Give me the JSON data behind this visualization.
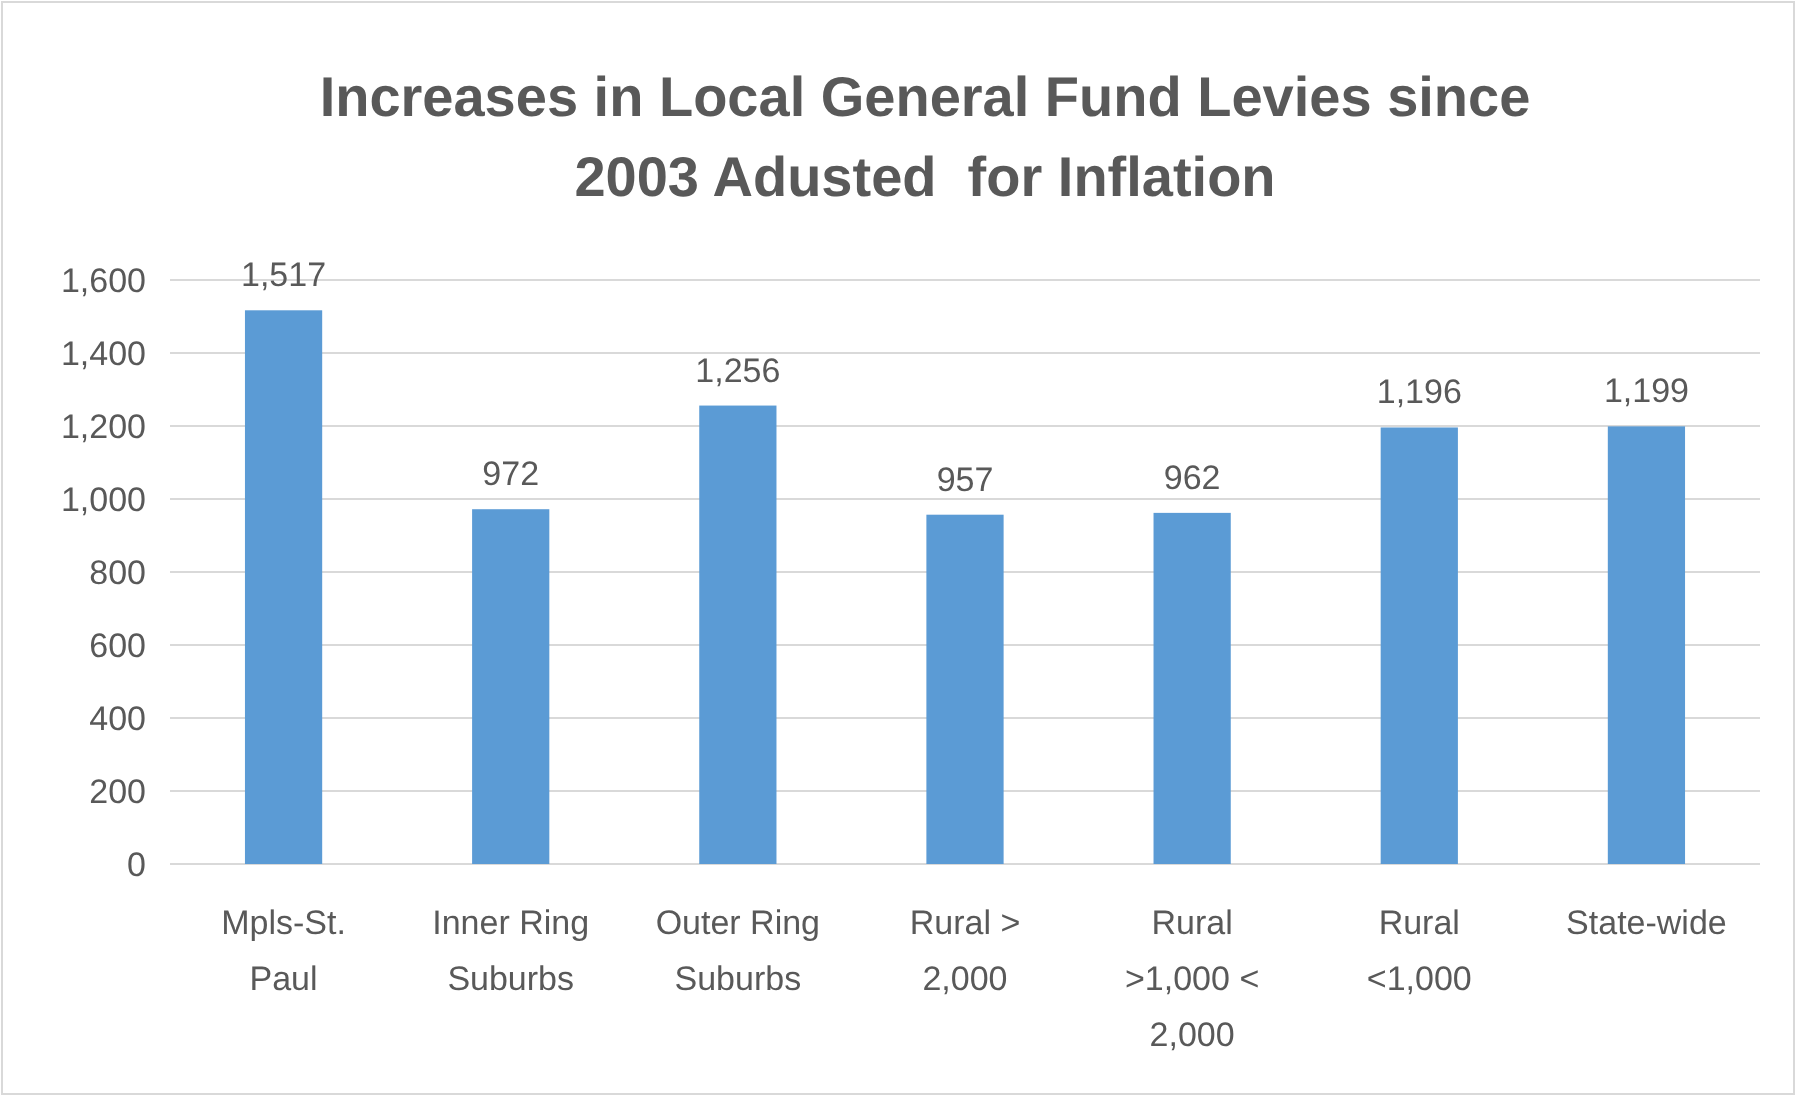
{
  "chart_data": {
    "type": "bar",
    "title": "Increases in Local General Fund Levies since 2003 Adusted  for Inflation",
    "categories": [
      "Mpls-St. Paul",
      "Inner Ring Suburbs",
      "Outer Ring Suburbs",
      "Rural > 2,000",
      "Rural >1,000 < 2,000",
      "Rural <1,000",
      "State-wide"
    ],
    "values": [
      1517,
      972,
      1256,
      957,
      962,
      1196,
      1199
    ],
    "color": "#5b9bd5",
    "ylim": [
      0,
      1600
    ],
    "yticks": [
      {
        "value": 0,
        "label": "0"
      },
      {
        "value": 200,
        "label": "200"
      },
      {
        "value": 400,
        "label": "400"
      },
      {
        "value": 600,
        "label": "600"
      },
      {
        "value": 800,
        "label": "800"
      },
      {
        "value": 1000,
        "label": "1,000"
      },
      {
        "value": 1200,
        "label": "1,200"
      },
      {
        "value": 1400,
        "label": "1,400"
      },
      {
        "value": 1600,
        "label": "1,600"
      }
    ],
    "value_labels": [
      "1,517",
      "972",
      "1,256",
      "957",
      "962",
      "1,196",
      "1,199"
    ],
    "grid": "y"
  }
}
